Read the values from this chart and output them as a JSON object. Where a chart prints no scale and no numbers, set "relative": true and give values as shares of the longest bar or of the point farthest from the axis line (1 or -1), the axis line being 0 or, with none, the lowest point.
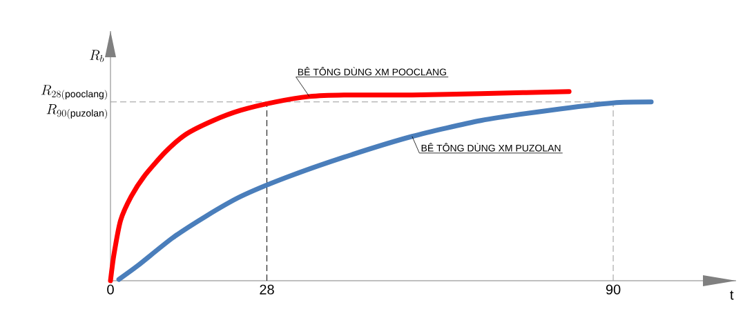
{
  "chart_data": {
    "type": "line",
    "relative": true,
    "xlabel": "t",
    "ylabel": "R_{b}",
    "xlim": [
      0,
      112
    ],
    "xticks": [
      0,
      28,
      90
    ],
    "legend": false,
    "marker": "none",
    "line_style": "solid",
    "grid": false,
    "series": [
      {
        "name": "BÊ TÔNG DÙNG XM POOCLANG",
        "color": "#ff0000",
        "x": [
          0,
          0.6,
          1.8,
          3.7,
          6.1,
          9.8,
          13.5,
          18.4,
          23.3,
          29.5,
          35.6,
          41.8,
          54,
          66.3,
          82.1
        ],
        "values": [
          0,
          0.135,
          0.318,
          0.445,
          0.555,
          0.68,
          0.774,
          0.847,
          0.901,
          0.945,
          0.974,
          0.982,
          0.982,
          0.989,
          1.0
        ]
      },
      {
        "name": "BÊ TÔNG DÙNG XM PUZOLAN",
        "color": "#4a7ebb",
        "x": [
          1.5,
          4.9,
          11.1,
          17.2,
          23.3,
          31.3,
          41.8,
          54,
          66.3,
          78.6,
          90,
          96.8
        ],
        "values": [
          0.007,
          0.08,
          0.226,
          0.343,
          0.445,
          0.544,
          0.653,
          0.763,
          0.847,
          0.901,
          0.94,
          0.945
        ]
      }
    ],
    "ref_lines": [
      {
        "axis": "y",
        "value": 0.945,
        "label": "R_{28(\\mathrm{pooclang})}",
        "color": "#999999",
        "line_style": "dashed"
      },
      {
        "axis": "x",
        "value": 28,
        "color": "#000000",
        "line_style": "dashed"
      },
      {
        "axis": "x",
        "value": 90,
        "color": "#999999",
        "line_style": "dashed"
      }
    ],
    "annotations": [
      {
        "text": "R_{90(\\mathrm{puzolan})}",
        "x": 0,
        "y": 0.945
      }
    ]
  }
}
